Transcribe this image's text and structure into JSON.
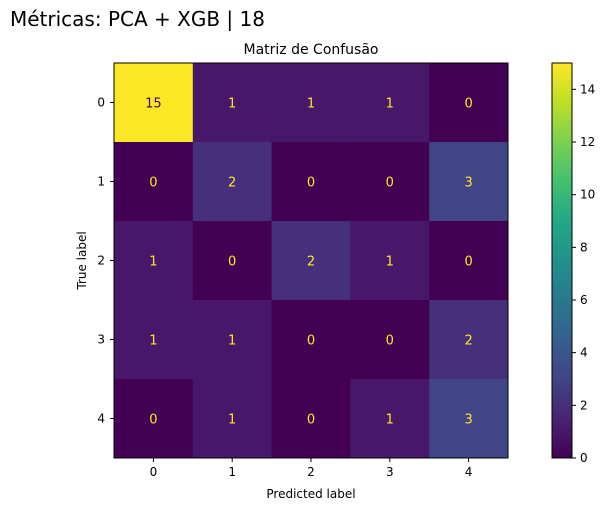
{
  "figure": {
    "suptitle": "Métricas: PCA + XGB | 18"
  },
  "chart_data": {
    "type": "heatmap",
    "title": "Matriz de Confusão",
    "xlabel": "Predicted label",
    "ylabel": "True label",
    "x_categories": [
      "0",
      "1",
      "2",
      "3",
      "4"
    ],
    "y_categories": [
      "0",
      "1",
      "2",
      "3",
      "4"
    ],
    "matrix": [
      [
        15,
        1,
        1,
        1,
        0
      ],
      [
        0,
        2,
        0,
        0,
        3
      ],
      [
        1,
        0,
        2,
        1,
        0
      ],
      [
        1,
        1,
        0,
        0,
        2
      ],
      [
        0,
        1,
        0,
        1,
        3
      ]
    ],
    "colormap": "viridis",
    "vmin": 0,
    "vmax": 15,
    "colorbar": {
      "ticks": [
        0,
        2,
        4,
        6,
        8,
        10,
        12,
        14
      ]
    },
    "annotation_colors": {
      "on_dark": "#fde725",
      "on_light": "#440154"
    },
    "grid": false
  }
}
